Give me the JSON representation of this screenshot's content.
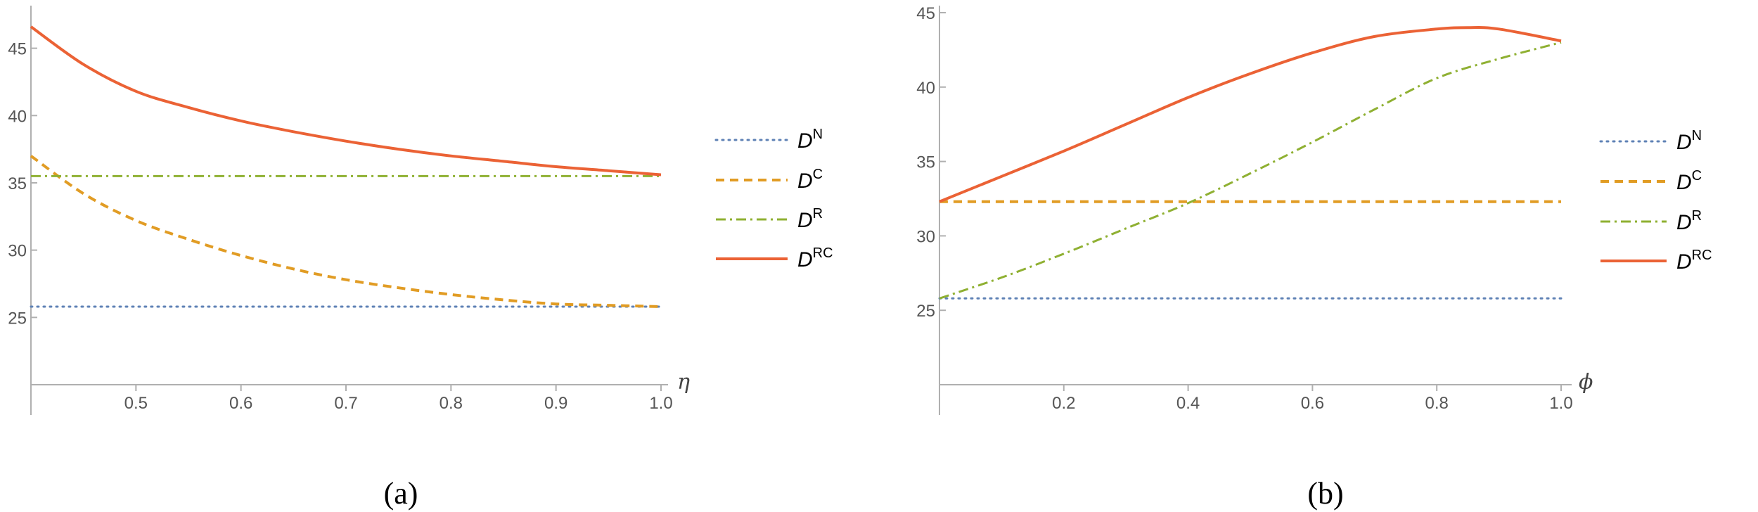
{
  "colors": {
    "DN": "#5e81b5",
    "DC": "#e19c24",
    "DR": "#8fb032",
    "DRC": "#eb6235",
    "axis": "#b0b0b0",
    "tick_text": "#555555"
  },
  "chart_data": [
    {
      "type": "line",
      "caption": "(a)",
      "xlabel": "η",
      "ylabel": "",
      "xlim": [
        0.4,
        1.0
      ],
      "ylim": [
        20,
        46.6
      ],
      "xticks": [
        "0.5",
        "0.6",
        "0.7",
        "0.8",
        "0.9",
        "1.0"
      ],
      "yticks": [
        "25",
        "30",
        "35",
        "40",
        "45"
      ],
      "legend_position": "right",
      "series": [
        {
          "name": "D",
          "sup": "N",
          "key": "DN",
          "style": "dotted",
          "x": [
            0.4,
            1.0
          ],
          "y": [
            25.8,
            25.8
          ]
        },
        {
          "name": "D",
          "sup": "C",
          "key": "DC",
          "style": "dashed",
          "x": [
            0.4,
            0.45,
            0.5,
            0.55,
            0.6,
            0.65,
            0.7,
            0.75,
            0.8,
            0.85,
            0.9,
            0.95,
            1.0
          ],
          "y": [
            37.0,
            34.2,
            32.2,
            30.8,
            29.6,
            28.6,
            27.8,
            27.2,
            26.7,
            26.3,
            26.0,
            25.9,
            25.8
          ]
        },
        {
          "name": "D",
          "sup": "R",
          "key": "DR",
          "style": "dashdot",
          "x": [
            0.4,
            1.0
          ],
          "y": [
            35.5,
            35.5
          ]
        },
        {
          "name": "D",
          "sup": "RC",
          "key": "DRC",
          "style": "solid",
          "x": [
            0.4,
            0.45,
            0.5,
            0.55,
            0.6,
            0.65,
            0.7,
            0.75,
            0.8,
            0.85,
            0.9,
            0.95,
            1.0
          ],
          "y": [
            46.6,
            43.8,
            41.8,
            40.6,
            39.6,
            38.8,
            38.1,
            37.5,
            37.0,
            36.6,
            36.2,
            35.9,
            35.6
          ]
        }
      ]
    },
    {
      "type": "line",
      "caption": "(b)",
      "xlabel": "ϕ",
      "ylabel": "",
      "xlim": [
        0.0,
        1.0
      ],
      "ylim": [
        20,
        45
      ],
      "xticks": [
        "0.2",
        "0.4",
        "0.6",
        "0.8",
        "1.0"
      ],
      "yticks": [
        "25",
        "30",
        "35",
        "40",
        "45"
      ],
      "legend_position": "right",
      "series": [
        {
          "name": "D",
          "sup": "N",
          "key": "DN",
          "style": "dotted",
          "x": [
            0.0,
            1.0
          ],
          "y": [
            25.8,
            25.8
          ]
        },
        {
          "name": "D",
          "sup": "C",
          "key": "DC",
          "style": "dashed",
          "x": [
            0.0,
            1.0
          ],
          "y": [
            32.3,
            32.3
          ]
        },
        {
          "name": "D",
          "sup": "R",
          "key": "DR",
          "style": "dashdot",
          "x": [
            0.0,
            0.1,
            0.2,
            0.3,
            0.4,
            0.5,
            0.6,
            0.7,
            0.8,
            0.9,
            1.0
          ],
          "y": [
            25.8,
            27.2,
            28.8,
            30.5,
            32.2,
            34.2,
            36.3,
            38.5,
            40.6,
            41.9,
            43.0
          ]
        },
        {
          "name": "D",
          "sup": "RC",
          "key": "DRC",
          "style": "solid",
          "x": [
            0.0,
            0.1,
            0.2,
            0.3,
            0.4,
            0.5,
            0.6,
            0.7,
            0.8,
            0.85,
            0.9,
            1.0
          ],
          "y": [
            32.3,
            34.0,
            35.7,
            37.5,
            39.3,
            40.9,
            42.3,
            43.4,
            43.9,
            44.0,
            43.9,
            43.1
          ]
        }
      ]
    }
  ]
}
